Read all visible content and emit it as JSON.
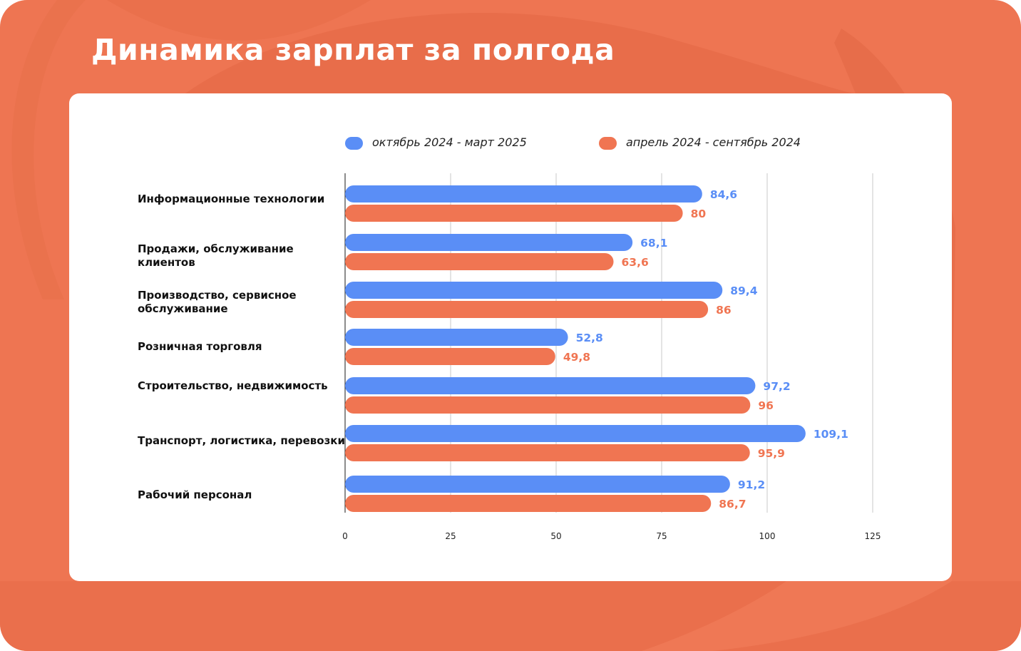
{
  "page": {
    "title": "Динамика зарплат за полгода",
    "background_color": "#EE7552"
  },
  "chart_data": {
    "type": "bar",
    "orientation": "horizontal",
    "categories": [
      "Информационные технологии",
      "Продажи, обслуживание клиентов",
      "Производство, сервисное обслуживание",
      "Розничная торговля",
      "Строительство, недвижимость",
      "Транспорт, логистика, перевозки",
      "Рабочий персонал"
    ],
    "series": [
      {
        "name": "октябрь 2024 - март 2025",
        "color": "#5A8EF6",
        "values": [
          84.6,
          68.1,
          89.4,
          52.8,
          97.2,
          109.1,
          91.2
        ],
        "labels": [
          "84,6",
          "68,1",
          "89,4",
          "52,8",
          "97,2",
          "109,1",
          "91,2"
        ]
      },
      {
        "name": "апрель 2024 - сентябрь 2024",
        "color": "#F07552",
        "values": [
          80,
          63.6,
          86,
          49.8,
          96,
          95.9,
          86.7
        ],
        "labels": [
          "80",
          "63,6",
          "86",
          "49,8",
          "96",
          "95,9",
          "86,7"
        ]
      }
    ],
    "xlim": [
      0,
      125
    ],
    "xticks": [
      0,
      25,
      50,
      75,
      100,
      125
    ],
    "xtick_labels": [
      "0",
      "25",
      "50",
      "75",
      "100",
      "125"
    ],
    "grid": true,
    "legend_position": "top"
  }
}
